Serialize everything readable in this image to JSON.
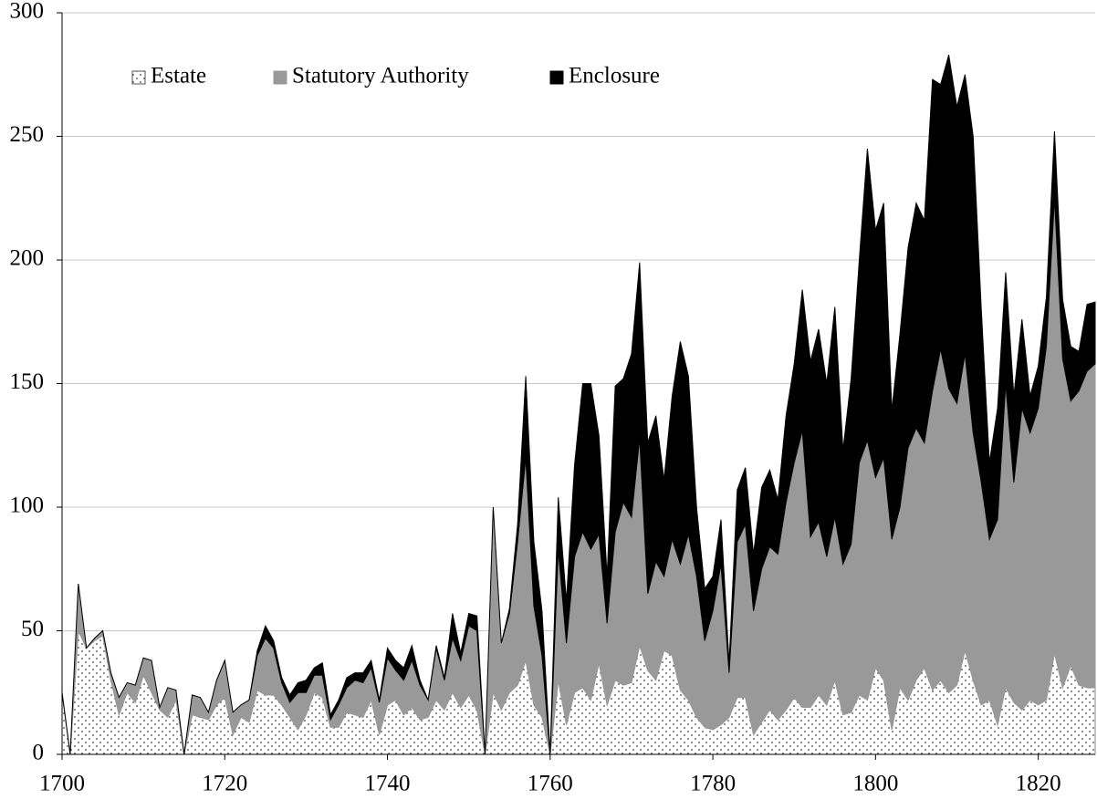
{
  "chart_data": {
    "type": "stacked_area",
    "x": [
      1700,
      1701,
      1702,
      1703,
      1704,
      1705,
      1706,
      1707,
      1708,
      1709,
      1710,
      1711,
      1712,
      1713,
      1714,
      1715,
      1716,
      1717,
      1718,
      1719,
      1720,
      1721,
      1722,
      1723,
      1724,
      1725,
      1726,
      1727,
      1728,
      1729,
      1730,
      1731,
      1732,
      1733,
      1734,
      1735,
      1736,
      1737,
      1738,
      1739,
      1740,
      1741,
      1742,
      1743,
      1744,
      1745,
      1746,
      1747,
      1748,
      1749,
      1750,
      1751,
      1752,
      1753,
      1754,
      1755,
      1756,
      1757,
      1758,
      1759,
      1760,
      1761,
      1762,
      1763,
      1764,
      1765,
      1766,
      1767,
      1768,
      1769,
      1770,
      1771,
      1772,
      1773,
      1774,
      1775,
      1776,
      1777,
      1778,
      1779,
      1780,
      1781,
      1782,
      1783,
      1784,
      1785,
      1786,
      1787,
      1788,
      1789,
      1790,
      1791,
      1792,
      1793,
      1794,
      1795,
      1796,
      1797,
      1798,
      1799,
      1800,
      1801,
      1802,
      1803,
      1804,
      1805,
      1806,
      1807,
      1808,
      1809,
      1810,
      1811,
      1812,
      1813,
      1814,
      1815,
      1816,
      1817,
      1818,
      1819,
      1820,
      1821,
      1822,
      1823,
      1824,
      1825,
      1826,
      1827
    ],
    "series": [
      {
        "name": "Estate",
        "color": "#ffffff",
        "values": [
          25,
          0,
          50,
          43,
          46,
          48,
          30,
          16,
          25,
          21,
          32,
          25,
          18,
          15,
          22,
          0,
          16,
          15,
          14,
          20,
          23,
          8,
          15,
          13,
          26,
          24,
          24,
          20,
          15,
          10,
          16,
          25,
          23,
          11,
          11,
          17,
          16,
          15,
          22,
          8,
          20,
          22,
          16,
          19,
          14,
          15,
          22,
          18,
          25,
          19,
          24,
          18,
          0,
          25,
          18,
          25,
          28,
          38,
          20,
          15,
          0,
          30,
          12,
          25,
          27,
          22,
          37,
          20,
          30,
          28,
          29,
          44,
          34,
          30,
          42,
          40,
          26,
          22,
          15,
          11,
          10,
          12,
          15,
          23,
          23,
          8,
          13,
          18,
          14,
          18,
          23,
          19,
          19,
          24,
          20,
          30,
          16,
          17,
          24,
          22,
          35,
          30,
          10,
          27,
          22,
          30,
          35,
          26,
          30,
          25,
          28,
          42,
          30,
          20,
          22,
          12,
          27,
          21,
          18,
          22,
          20,
          22,
          41,
          27,
          36,
          28,
          27,
          27
        ]
      },
      {
        "name": "Statutory Authority",
        "color": "#999999",
        "values": [
          0,
          0,
          19,
          0,
          1,
          2,
          3,
          7,
          4,
          7,
          7,
          13,
          1,
          12,
          4,
          0,
          8,
          8,
          3,
          10,
          15,
          9,
          5,
          9,
          14,
          23,
          19,
          9,
          6,
          15,
          9,
          7,
          9,
          3,
          9,
          10,
          14,
          14,
          13,
          13,
          19,
          12,
          14,
          19,
          14,
          7,
          21,
          12,
          22,
          19,
          28,
          32,
          0,
          75,
          27,
          32,
          58,
          82,
          40,
          25,
          0,
          53,
          33,
          55,
          63,
          61,
          52,
          33,
          60,
          74,
          67,
          84,
          31,
          48,
          30,
          47,
          51,
          67,
          57,
          35,
          48,
          65,
          18,
          63,
          70,
          50,
          62,
          66,
          67,
          84,
          95,
          112,
          69,
          70,
          60,
          66,
          61,
          68,
          94,
          105,
          77,
          90,
          77,
          73,
          102,
          102,
          91,
          121,
          134,
          123,
          114,
          120,
          100,
          90,
          65,
          83,
          123,
          89,
          122,
          108,
          120,
          143,
          184,
          133,
          107,
          119,
          128,
          131
        ]
      },
      {
        "name": "Enclosure",
        "color": "#000000",
        "values": [
          0,
          0,
          0,
          0,
          0,
          0,
          0,
          0,
          0,
          0,
          0,
          0,
          0,
          0,
          0,
          0,
          0,
          0,
          0,
          0,
          0,
          0,
          0,
          0,
          2,
          5,
          3,
          2,
          3,
          4,
          5,
          3,
          5,
          2,
          2,
          4,
          3,
          4,
          3,
          1,
          4,
          4,
          5,
          6,
          2,
          0,
          1,
          1,
          10,
          3,
          5,
          6,
          0,
          0,
          0,
          2,
          7,
          33,
          26,
          18,
          0,
          21,
          17,
          37,
          60,
          67,
          40,
          19,
          59,
          50,
          66,
          71,
          61,
          59,
          39,
          58,
          90,
          64,
          28,
          21,
          14,
          18,
          4,
          21,
          23,
          23,
          33,
          31,
          22,
          35,
          40,
          57,
          71,
          78,
          70,
          85,
          46,
          67,
          82,
          118,
          100,
          103,
          52,
          70,
          81,
          91,
          90,
          126,
          107,
          135,
          120,
          113,
          120,
          70,
          31,
          45,
          45,
          35,
          36,
          15,
          17,
          20,
          27,
          24,
          22,
          16,
          27,
          25
        ]
      }
    ],
    "xlim": [
      1700,
      1827
    ],
    "xticks": [
      1700,
      1720,
      1740,
      1760,
      1780,
      1800,
      1820
    ],
    "ylim": [
      0,
      300
    ],
    "yticks": [
      0,
      50,
      100,
      150,
      200,
      250,
      300
    ],
    "grid": true
  }
}
